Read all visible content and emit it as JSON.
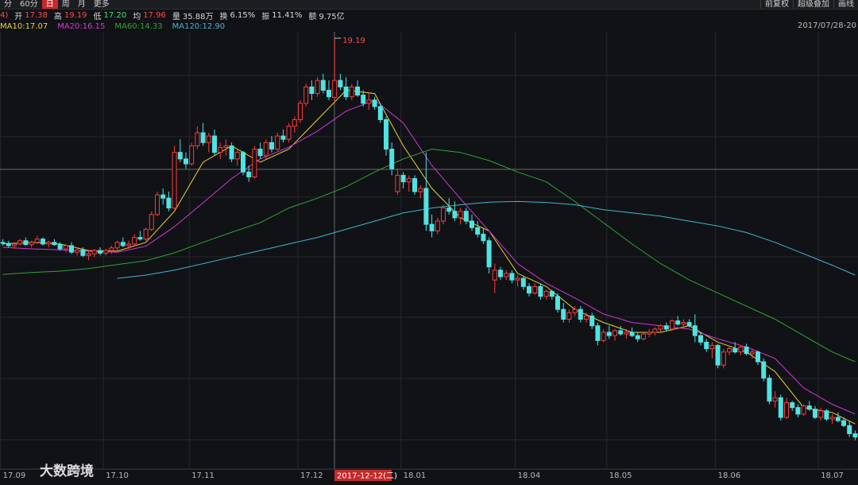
{
  "toolbar": {
    "tabs": [
      {
        "text": "分",
        "active": false
      },
      {
        "text": "60分",
        "active": false
      },
      {
        "text": "日",
        "active": true
      },
      {
        "text": "周",
        "active": false
      },
      {
        "text": "月",
        "active": false
      },
      {
        "text": "更多",
        "active": false
      }
    ],
    "tools": [
      "前复权",
      "超级叠加",
      "画线"
    ]
  },
  "stats": {
    "prefix": "4)",
    "items": [
      {
        "label": "开",
        "value": "17.38",
        "color": "#ff4a4a"
      },
      {
        "label": "高",
        "value": "19.19",
        "color": "#ff4a4a"
      },
      {
        "label": "低",
        "value": "17.20",
        "color": "#3ee07a"
      },
      {
        "label": "均",
        "value": "17.96",
        "color": "#ff4a4a"
      },
      {
        "label": "量",
        "value": "35.88万",
        "color": "#d8d8d8"
      },
      {
        "label": "换",
        "value": "6.15%",
        "color": "#d8d8d8"
      },
      {
        "label": "振",
        "value": "11.41%",
        "color": "#d8d8d8"
      },
      {
        "label": "额",
        "value": "9.75亿",
        "color": "#d8d8d8"
      }
    ]
  },
  "date_range": "2017/07/28-20",
  "watermark": "大数跨境",
  "chart_data": {
    "type": "candlestick",
    "up_color": "#ff3b3b",
    "down_color": "#4fe3e3",
    "ylim": [
      6.87,
      19.92
    ],
    "categories": [
      "17.09",
      null,
      null,
      null,
      null,
      null,
      null,
      null,
      null,
      null,
      null,
      null,
      null,
      null,
      null,
      null,
      null,
      null,
      "17.10",
      null,
      null,
      null,
      null,
      null,
      null,
      null,
      null,
      null,
      null,
      null,
      null,
      null,
      null,
      "17.11",
      null,
      null,
      null,
      null,
      null,
      null,
      null,
      null,
      null,
      null,
      null,
      null,
      null,
      null,
      null,
      null,
      null,
      null,
      "17.12",
      null,
      null,
      null,
      null,
      null,
      null,
      null,
      null,
      null,
      null,
      null,
      null,
      null,
      null,
      null,
      null,
      null,
      "18.01",
      null,
      null,
      null,
      null,
      null,
      null,
      null,
      null,
      null,
      null,
      null,
      null,
      null,
      null,
      null,
      null,
      null,
      null,
      null,
      "18.04",
      null,
      null,
      null,
      null,
      null,
      null,
      null,
      null,
      null,
      null,
      null,
      null,
      null,
      null,
      null,
      "18.05",
      null,
      null,
      null,
      null,
      null,
      null,
      null,
      null,
      null,
      null,
      null,
      null,
      null,
      null,
      null,
      null,
      null,
      null,
      "18.06",
      null,
      null,
      null,
      null,
      null,
      null,
      null,
      null,
      null,
      null,
      null,
      null,
      null,
      null,
      null,
      null,
      null,
      "18.07",
      null,
      null,
      null,
      null,
      null,
      null
    ],
    "candles": [
      [
        12.95,
        13.05,
        12.85,
        12.92
      ],
      [
        12.92,
        13.0,
        12.8,
        12.85
      ],
      [
        12.85,
        12.95,
        12.75,
        12.9
      ],
      [
        12.9,
        13.05,
        12.85,
        13.0
      ],
      [
        13.0,
        13.1,
        12.85,
        12.88
      ],
      [
        12.88,
        13.0,
        12.8,
        12.95
      ],
      [
        12.95,
        13.15,
        12.9,
        13.05
      ],
      [
        13.05,
        13.1,
        12.85,
        12.9
      ],
      [
        12.9,
        13.0,
        12.8,
        12.95
      ],
      [
        12.95,
        13.05,
        12.85,
        12.88
      ],
      [
        12.88,
        12.95,
        12.7,
        12.75
      ],
      [
        12.75,
        12.9,
        12.65,
        12.85
      ],
      [
        12.85,
        12.95,
        12.6,
        12.65
      ],
      [
        12.65,
        12.8,
        12.55,
        12.72
      ],
      [
        12.72,
        12.8,
        12.5,
        12.55
      ],
      [
        12.55,
        12.7,
        12.4,
        12.6
      ],
      [
        12.6,
        12.75,
        12.5,
        12.7
      ],
      [
        12.7,
        12.8,
        12.55,
        12.62
      ],
      [
        12.62,
        12.75,
        12.55,
        12.7
      ],
      [
        12.7,
        12.85,
        12.6,
        12.78
      ],
      [
        12.78,
        13.0,
        12.7,
        12.95
      ],
      [
        12.95,
        13.1,
        12.8,
        12.85
      ],
      [
        12.85,
        13.0,
        12.75,
        12.9
      ],
      [
        12.9,
        13.2,
        12.85,
        13.1
      ],
      [
        13.1,
        13.3,
        13.0,
        13.05
      ],
      [
        13.05,
        13.4,
        13.0,
        13.35
      ],
      [
        13.35,
        13.9,
        13.3,
        13.8
      ],
      [
        13.8,
        14.5,
        13.75,
        14.4
      ],
      [
        14.4,
        14.6,
        14.1,
        14.3
      ],
      [
        14.3,
        14.5,
        13.9,
        14.0
      ],
      [
        14.0,
        15.9,
        13.95,
        15.7
      ],
      [
        15.7,
        16.1,
        15.4,
        15.5
      ],
      [
        15.5,
        15.7,
        15.2,
        15.35
      ],
      [
        15.35,
        16.0,
        15.3,
        15.9
      ],
      [
        15.9,
        16.5,
        15.8,
        16.3
      ],
      [
        16.3,
        16.6,
        15.9,
        16.0
      ],
      [
        16.0,
        16.3,
        15.7,
        16.2
      ],
      [
        16.2,
        16.4,
        15.6,
        15.7
      ],
      [
        15.7,
        16.0,
        15.5,
        15.85
      ],
      [
        15.85,
        16.1,
        15.6,
        15.9
      ],
      [
        15.9,
        16.0,
        15.4,
        15.5
      ],
      [
        15.5,
        15.8,
        15.3,
        15.7
      ],
      [
        15.7,
        15.75,
        15.0,
        15.1
      ],
      [
        15.1,
        15.3,
        14.8,
        14.95
      ],
      [
        14.95,
        15.9,
        14.9,
        15.8
      ],
      [
        15.8,
        16.0,
        15.5,
        15.6
      ],
      [
        15.6,
        16.1,
        15.5,
        16.0
      ],
      [
        16.0,
        16.2,
        15.7,
        15.8
      ],
      [
        15.8,
        16.3,
        15.75,
        16.2
      ],
      [
        16.2,
        16.4,
        16.0,
        16.1
      ],
      [
        16.1,
        16.6,
        16.0,
        16.5
      ],
      [
        16.5,
        16.8,
        16.3,
        16.7
      ],
      [
        16.7,
        17.3,
        16.6,
        17.2
      ],
      [
        17.2,
        17.8,
        17.1,
        17.7
      ],
      [
        17.7,
        17.9,
        17.3,
        17.5
      ],
      [
        17.5,
        18.0,
        17.4,
        17.9
      ],
      [
        17.9,
        18.1,
        17.5,
        17.6
      ],
      [
        17.6,
        17.9,
        17.3,
        17.4
      ],
      [
        17.38,
        19.19,
        17.2,
        17.9
      ],
      [
        17.9,
        18.1,
        17.6,
        17.7
      ],
      [
        17.7,
        18.0,
        17.3,
        17.4
      ],
      [
        17.4,
        17.8,
        17.3,
        17.7
      ],
      [
        17.7,
        17.9,
        17.4,
        17.45
      ],
      [
        17.45,
        17.6,
        17.1,
        17.2
      ],
      [
        17.2,
        17.5,
        17.0,
        17.3
      ],
      [
        17.3,
        17.4,
        17.0,
        17.1
      ],
      [
        17.1,
        17.2,
        16.6,
        16.7
      ],
      [
        16.7,
        16.8,
        15.6,
        15.8
      ],
      [
        15.8,
        16.0,
        15.0,
        15.2
      ],
      [
        14.5,
        15.2,
        14.4,
        15.0
      ],
      [
        15.0,
        15.1,
        14.6,
        14.8
      ],
      [
        14.8,
        15.0,
        14.5,
        14.9
      ],
      [
        14.9,
        15.0,
        14.4,
        14.5
      ],
      [
        14.5,
        14.7,
        14.3,
        14.6
      ],
      [
        14.6,
        15.7,
        13.3,
        13.5
      ],
      [
        13.5,
        13.8,
        13.1,
        13.3
      ],
      [
        13.3,
        13.7,
        13.2,
        13.6
      ],
      [
        13.6,
        14.1,
        13.5,
        14.0
      ],
      [
        14.0,
        14.3,
        13.8,
        13.9
      ],
      [
        13.9,
        14.2,
        13.6,
        13.7
      ],
      [
        13.7,
        14.0,
        13.5,
        13.9
      ],
      [
        13.9,
        14.0,
        13.5,
        13.6
      ],
      [
        13.6,
        13.8,
        13.3,
        13.4
      ],
      [
        13.4,
        13.6,
        13.1,
        13.2
      ],
      [
        13.2,
        13.4,
        12.9,
        13.0
      ],
      [
        13.0,
        13.1,
        12.0,
        12.2
      ],
      [
        11.8,
        12.3,
        11.4,
        12.1
      ],
      [
        12.1,
        12.2,
        11.8,
        11.9
      ],
      [
        11.9,
        12.1,
        11.8,
        12.0
      ],
      [
        12.0,
        12.1,
        11.7,
        11.8
      ],
      [
        11.8,
        11.95,
        11.6,
        11.85
      ],
      [
        11.85,
        11.9,
        11.5,
        11.6
      ],
      [
        11.6,
        11.7,
        11.3,
        11.4
      ],
      [
        11.4,
        11.7,
        11.35,
        11.6
      ],
      [
        11.6,
        11.7,
        11.2,
        11.3
      ],
      [
        11.3,
        11.5,
        11.2,
        11.45
      ],
      [
        11.45,
        11.5,
        11.2,
        11.3
      ],
      [
        11.3,
        11.4,
        10.8,
        10.9
      ],
      [
        10.9,
        11.1,
        10.5,
        10.6
      ],
      [
        10.6,
        10.9,
        10.5,
        10.8
      ],
      [
        10.8,
        11.0,
        10.7,
        10.9
      ],
      [
        10.9,
        11.0,
        10.5,
        10.6
      ],
      [
        10.6,
        10.8,
        10.5,
        10.7
      ],
      [
        10.7,
        10.8,
        10.3,
        10.4
      ],
      [
        10.4,
        10.5,
        9.8,
        9.95
      ],
      [
        9.95,
        10.3,
        9.9,
        10.2
      ],
      [
        10.2,
        10.4,
        10.0,
        10.1
      ],
      [
        10.1,
        10.3,
        9.95,
        10.25
      ],
      [
        10.25,
        10.4,
        10.1,
        10.15
      ],
      [
        10.15,
        10.3,
        10.0,
        10.2
      ],
      [
        10.2,
        10.35,
        10.05,
        10.1
      ],
      [
        10.1,
        10.2,
        9.9,
        10.0
      ],
      [
        10.0,
        10.2,
        9.95,
        10.15
      ],
      [
        10.15,
        10.3,
        10.05,
        10.2
      ],
      [
        10.2,
        10.35,
        10.1,
        10.3
      ],
      [
        10.3,
        10.45,
        10.2,
        10.4
      ],
      [
        10.4,
        10.5,
        10.25,
        10.3
      ],
      [
        10.3,
        10.6,
        10.25,
        10.55
      ],
      [
        10.55,
        10.7,
        10.4,
        10.45
      ],
      [
        10.45,
        10.6,
        10.3,
        10.5
      ],
      [
        10.5,
        10.6,
        10.35,
        10.4
      ],
      [
        10.4,
        10.75,
        9.9,
        10.1
      ],
      [
        10.1,
        10.2,
        9.8,
        9.9
      ],
      [
        9.9,
        10.0,
        9.6,
        9.7
      ],
      [
        9.7,
        9.9,
        9.4,
        9.8
      ],
      [
        9.8,
        9.85,
        9.1,
        9.2
      ],
      [
        9.2,
        9.7,
        9.1,
        9.6
      ],
      [
        9.6,
        9.8,
        9.5,
        9.7
      ],
      [
        9.7,
        9.9,
        9.55,
        9.6
      ],
      [
        9.6,
        9.8,
        9.5,
        9.75
      ],
      [
        9.75,
        9.85,
        9.5,
        9.55
      ],
      [
        9.55,
        9.7,
        9.4,
        9.6
      ],
      [
        9.6,
        9.65,
        9.2,
        9.3
      ],
      [
        9.3,
        9.4,
        8.7,
        8.8
      ],
      [
        8.8,
        8.9,
        8.0,
        8.1
      ],
      [
        8.1,
        8.4,
        7.9,
        8.2
      ],
      [
        8.2,
        8.3,
        7.5,
        7.6
      ],
      [
        7.6,
        8.2,
        7.55,
        8.05
      ],
      [
        8.05,
        8.1,
        7.8,
        7.9
      ],
      [
        7.9,
        8.0,
        7.6,
        7.7
      ],
      [
        7.7,
        8.0,
        7.65,
        7.95
      ],
      [
        7.95,
        8.1,
        7.8,
        7.85
      ],
      [
        7.85,
        7.95,
        7.55,
        7.6
      ],
      [
        7.6,
        7.9,
        7.5,
        7.8
      ],
      [
        7.8,
        7.85,
        7.5,
        7.55
      ],
      [
        7.55,
        7.7,
        7.4,
        7.6
      ],
      [
        7.6,
        7.75,
        7.45,
        7.5
      ],
      [
        7.5,
        7.6,
        7.3,
        7.35
      ],
      [
        7.35,
        7.5,
        7.0,
        7.1
      ],
      [
        7.1,
        7.2,
        6.9,
        7.0
      ]
    ],
    "x": [
      0,
      5,
      10,
      15,
      20,
      25,
      30,
      35,
      40,
      45,
      50,
      55,
      60,
      65,
      70,
      75,
      80,
      85,
      90,
      95,
      100,
      105,
      110,
      115,
      120,
      125,
      130,
      135,
      140,
      145,
      149
    ],
    "series": [
      {
        "name": "MA10:17.07",
        "color": "#e8d33a",
        "values": [
          12.9,
          12.95,
          12.9,
          12.7,
          12.68,
          12.95,
          13.9,
          15.4,
          15.9,
          15.4,
          15.8,
          16.7,
          17.6,
          17.5,
          15.9,
          14.6,
          13.7,
          13.3,
          12.0,
          11.6,
          10.9,
          10.5,
          10.2,
          10.2,
          10.4,
          9.9,
          9.6,
          9.0,
          7.9,
          7.75,
          7.4
        ]
      },
      {
        "name": "MA20:16.15",
        "color": "#d238d6",
        "values": [
          12.8,
          12.75,
          12.72,
          12.68,
          12.65,
          12.83,
          13.43,
          14.16,
          14.9,
          15.5,
          15.86,
          16.35,
          16.96,
          17.3,
          16.6,
          15.3,
          14.28,
          13.3,
          12.3,
          11.7,
          11.25,
          10.76,
          10.5,
          10.4,
          10.3,
          10.0,
          9.75,
          9.4,
          8.5,
          8.0,
          7.7
        ]
      },
      {
        "name": "MA60:14.33",
        "color": "#2fa33a",
        "values": [
          11.97,
          12.03,
          12.07,
          12.15,
          12.27,
          12.39,
          12.63,
          12.95,
          13.26,
          13.55,
          14.0,
          14.3,
          14.65,
          15.1,
          15.5,
          15.8,
          15.7,
          15.45,
          15.1,
          14.8,
          14.2,
          13.55,
          12.9,
          12.3,
          11.8,
          11.4,
          11.0,
          10.6,
          10.1,
          9.6,
          9.3
        ]
      },
      {
        "name": "MA120:12.90",
        "color": "#3fb7c9",
        "values": [
          null,
          null,
          null,
          null,
          11.85,
          11.95,
          12.1,
          12.3,
          12.5,
          12.7,
          12.9,
          13.1,
          13.35,
          13.6,
          13.85,
          14.0,
          14.1,
          14.18,
          14.2,
          14.17,
          14.1,
          13.95,
          13.85,
          13.75,
          13.6,
          13.45,
          13.25,
          12.95,
          12.6,
          12.25,
          11.95
        ]
      }
    ],
    "crosshair_label": "2017-12-12(二)"
  }
}
